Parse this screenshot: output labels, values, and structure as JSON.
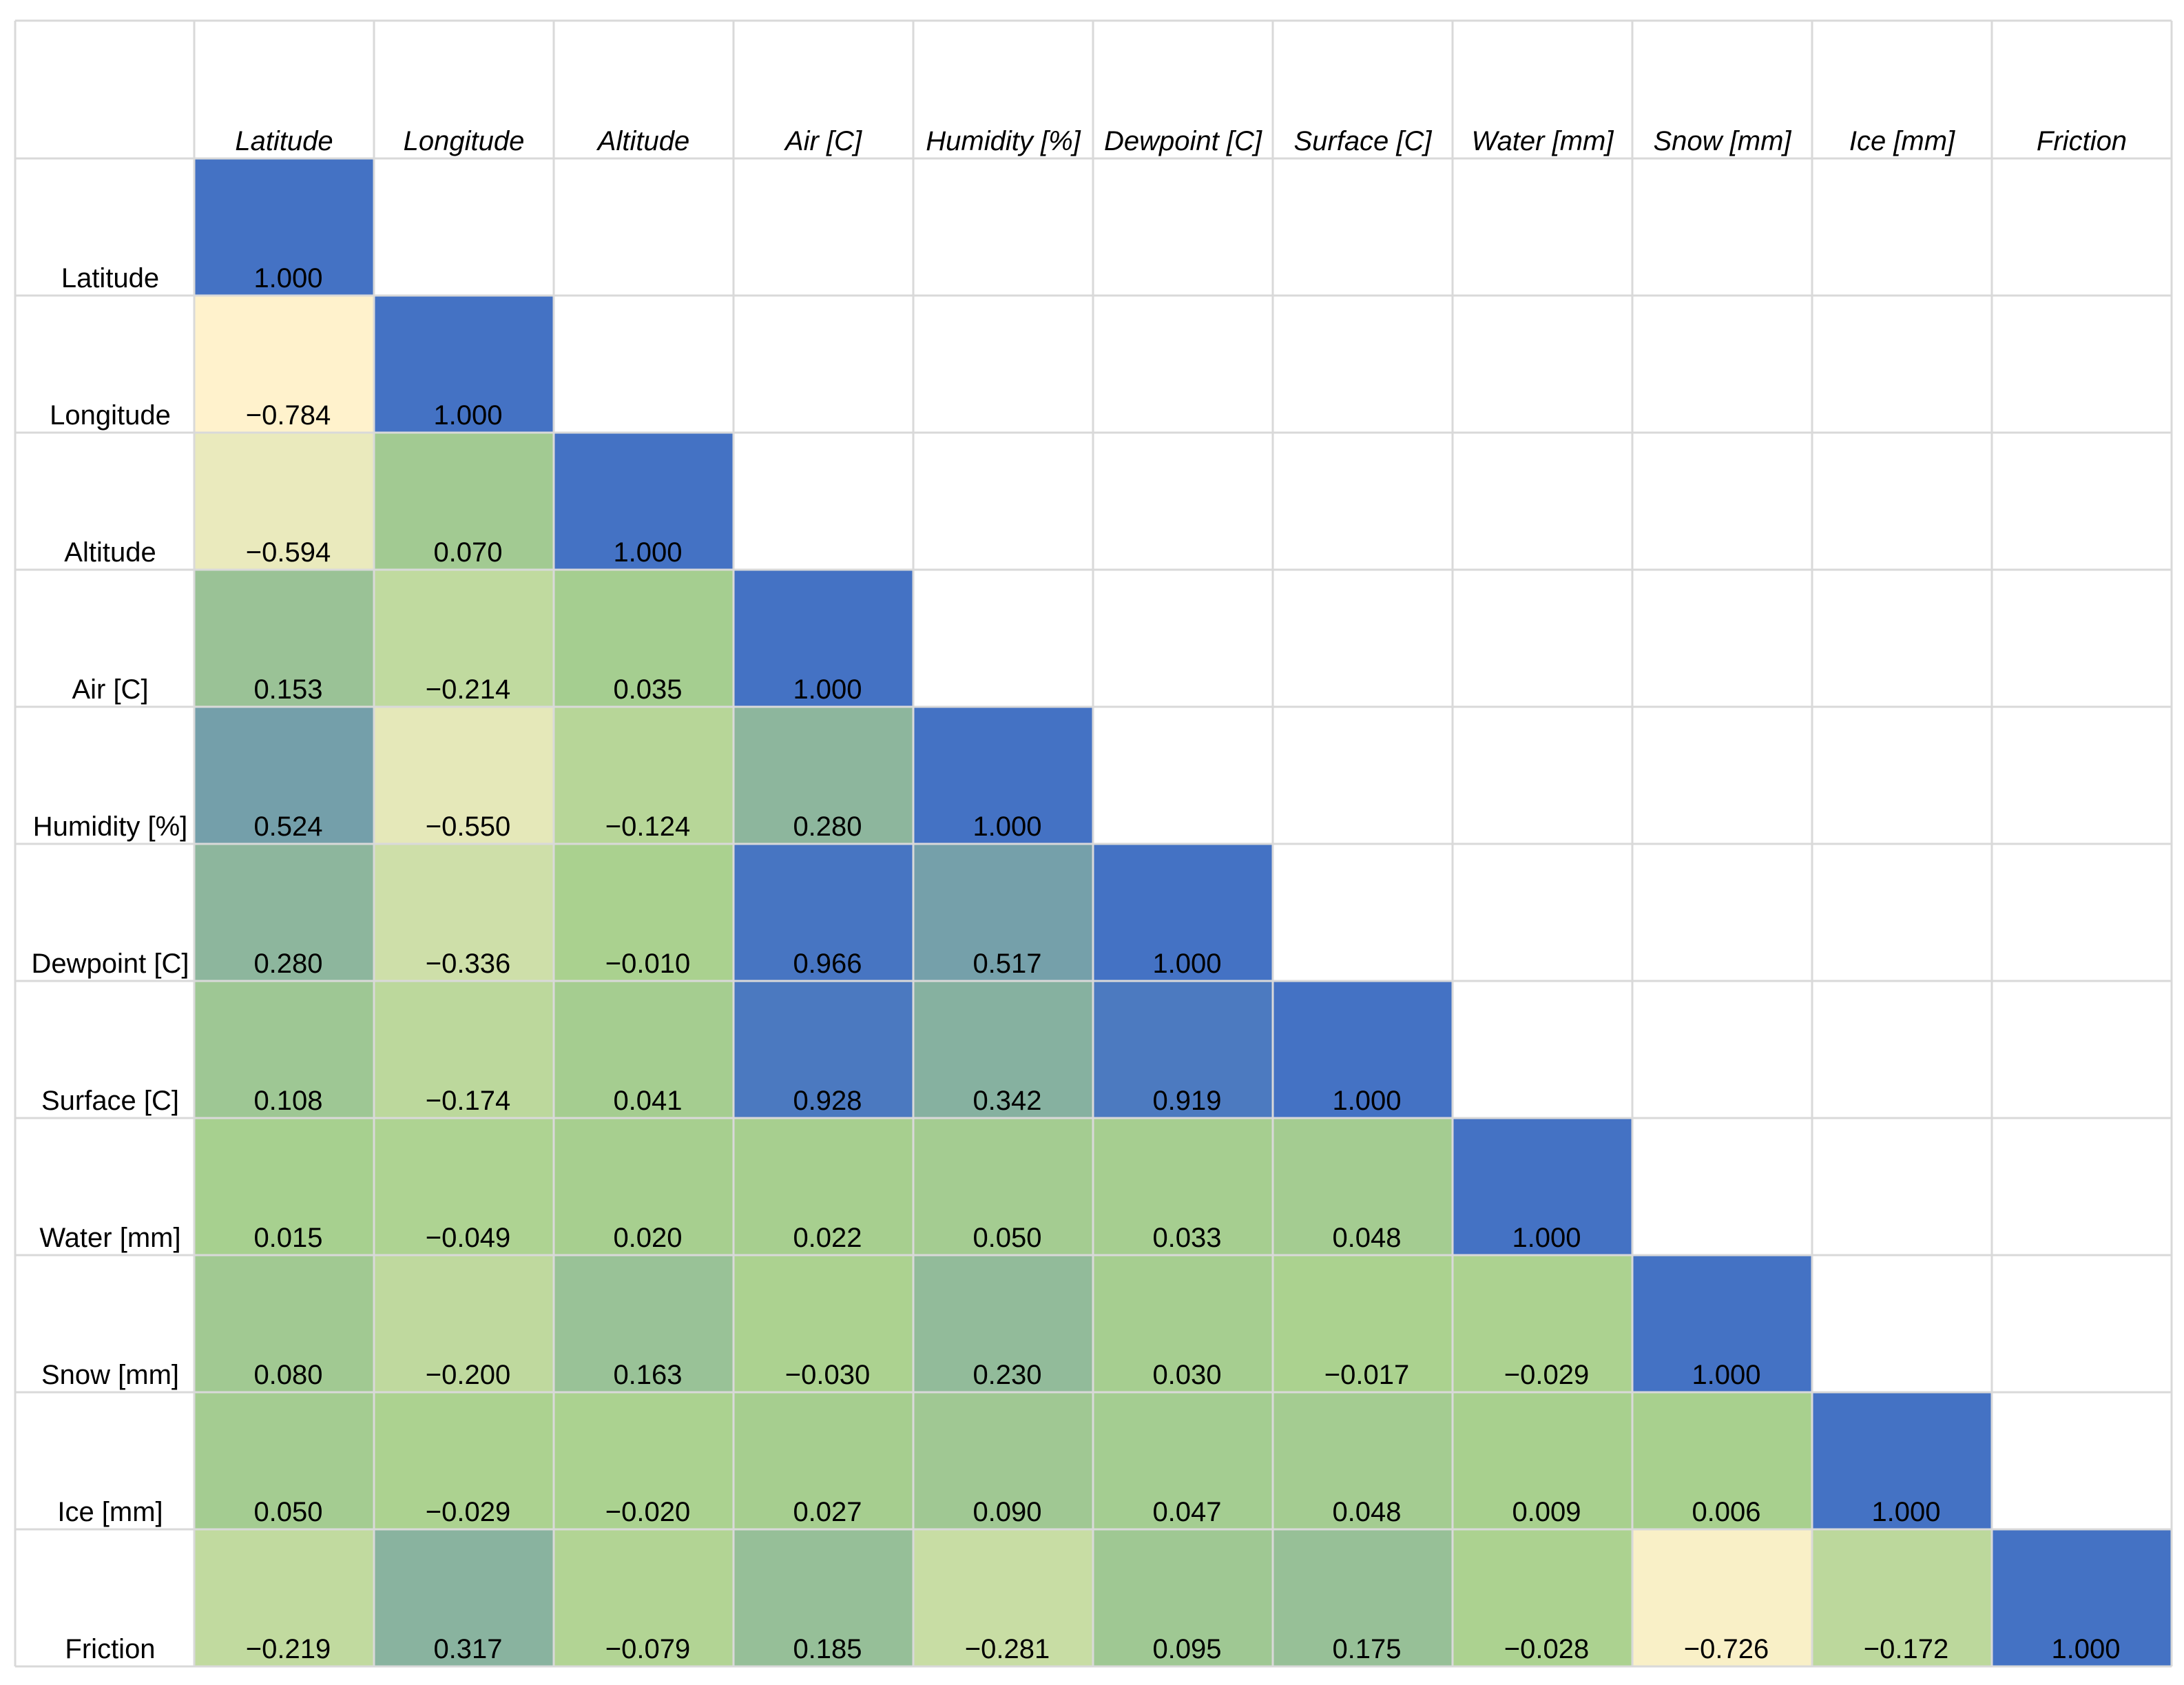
{
  "chart_data": {
    "type": "heatmap",
    "title": "",
    "variables": [
      "Latitude",
      "Longitude",
      "Altitude",
      "Air [C]",
      "Humidity [%]",
      "Dewpoint [C]",
      "Surface [C]",
      "Water [mm]",
      "Snow [mm]",
      "Ice [mm]",
      "Friction"
    ],
    "matrix": [
      [
        "1.000"
      ],
      [
        "−0.784",
        "1.000"
      ],
      [
        "−0.594",
        "0.070",
        "1.000"
      ],
      [
        "0.153",
        "−0.214",
        "0.035",
        "1.000"
      ],
      [
        "0.524",
        "−0.550",
        "−0.124",
        "0.280",
        "1.000"
      ],
      [
        "0.280",
        "−0.336",
        "−0.010",
        "0.966",
        "0.517",
        "1.000"
      ],
      [
        "0.108",
        "−0.174",
        "0.041",
        "0.928",
        "0.342",
        "0.919",
        "1.000"
      ],
      [
        "0.015",
        "−0.049",
        "0.020",
        "0.022",
        "0.050",
        "0.033",
        "0.048",
        "1.000"
      ],
      [
        "0.080",
        "−0.200",
        "0.163",
        "−0.030",
        "0.230",
        "0.030",
        "−0.017",
        "−0.029",
        "1.000"
      ],
      [
        "0.050",
        "−0.029",
        "−0.020",
        "0.027",
        "0.090",
        "0.047",
        "0.048",
        "0.009",
        "0.006",
        "1.000"
      ],
      [
        "−0.219",
        "0.317",
        "−0.079",
        "0.185",
        "−0.281",
        "0.095",
        "0.175",
        "−0.028",
        "−0.726",
        "−0.172",
        "1.000"
      ]
    ],
    "color_scale": {
      "min_value": -0.784,
      "min_color": "#fff2cc",
      "mid_value": 0,
      "mid_color": "#a9d18e",
      "max_value": 1,
      "max_color": "#4472c4"
    },
    "grid_color": "#d9d9d9"
  }
}
